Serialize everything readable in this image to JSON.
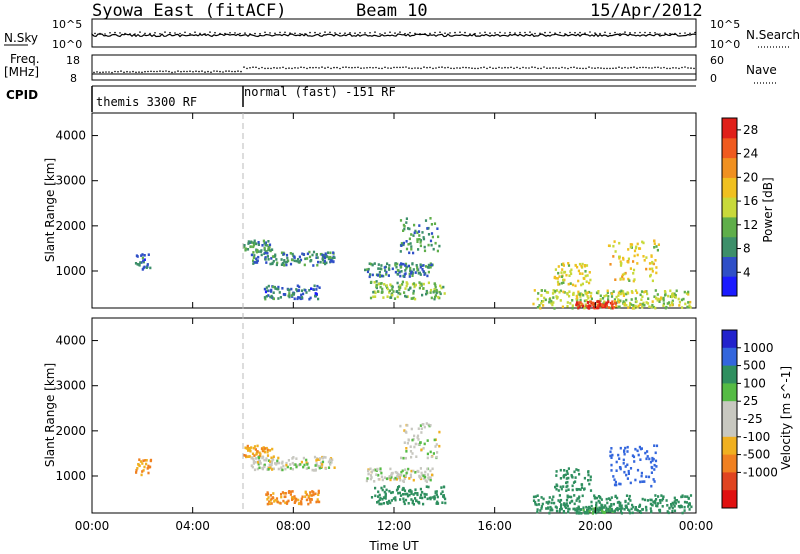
{
  "header": {
    "station": "Syowa East (fitACF)",
    "beam": "Beam 10",
    "date": "15/Apr/2012"
  },
  "top_panels": {
    "nsky_label": "N.Sky",
    "nsky_top": "10^5",
    "nsky_bottom": "10^0",
    "nsearch_label": "N.Search",
    "nsearch_top": "10^5",
    "nsearch_bottom": "10^0",
    "freq_label": "Freq.",
    "freq_unit": "[MHz]",
    "freq_top": "18",
    "freq_bottom": "8",
    "nave_label": "Nave",
    "nave_top": "60",
    "nave_bottom": "0",
    "cpid_label": "CPID",
    "cpid_segments": [
      {
        "label": "themis 3300 RF",
        "start_hour": 0
      },
      {
        "label": "normal (fast) -151 RF",
        "start_hour": 6
      }
    ]
  },
  "colors": {
    "power_scale": [
      "#1b1bff",
      "#2f4fc7",
      "#3d8f6a",
      "#5fae4a",
      "#c8d93a",
      "#f0c020",
      "#f09020",
      "#ef5a1f",
      "#e0201a"
    ],
    "velocity_scale": [
      "#2222cc",
      "#3366dd",
      "#2f8f5f",
      "#55bb44",
      "#c8c8c0",
      "#c8c8c0",
      "#f0b020",
      "#f08020",
      "#e04420",
      "#e01010"
    ]
  },
  "chart_data": [
    {
      "type": "heatmap",
      "name": "power-panel",
      "ylabel": "Slant Range [km]",
      "xlabel": "",
      "xlim": [
        0,
        24
      ],
      "ylim": [
        180,
        4500
      ],
      "y_ticks": [
        1000,
        2000,
        3000,
        4000
      ],
      "x_ticks": [
        0,
        4,
        8,
        12,
        16,
        20,
        24
      ],
      "colorbar_label": "Power [dB]",
      "colorbar_ticks": [
        "4",
        "8",
        "12",
        "16",
        "20",
        "24",
        "28"
      ],
      "colorbar_range": [
        0,
        30
      ],
      "patches": [
        {
          "t0": 1.7,
          "t1": 2.3,
          "r0": 1050,
          "r1": 1400,
          "v": 7
        },
        {
          "t0": 6.0,
          "t1": 7.2,
          "r0": 1450,
          "r1": 1700,
          "v": 9
        },
        {
          "t0": 6.3,
          "t1": 9.6,
          "r0": 1150,
          "r1": 1450,
          "v": 8
        },
        {
          "t0": 6.8,
          "t1": 9.0,
          "r0": 400,
          "r1": 700,
          "v": 7
        },
        {
          "t0": 10.8,
          "t1": 13.5,
          "r0": 900,
          "r1": 1200,
          "v": 8
        },
        {
          "t0": 12.2,
          "t1": 13.8,
          "r0": 1400,
          "r1": 2200,
          "v": 9
        },
        {
          "t0": 11.0,
          "t1": 14.0,
          "r0": 400,
          "r1": 800,
          "v": 12
        },
        {
          "t0": 17.5,
          "t1": 23.8,
          "r0": 200,
          "r1": 600,
          "v": 14
        },
        {
          "t0": 18.3,
          "t1": 19.8,
          "r0": 700,
          "r1": 1200,
          "v": 16
        },
        {
          "t0": 20.5,
          "t1": 22.5,
          "r0": 800,
          "r1": 1700,
          "v": 17
        },
        {
          "t0": 19.2,
          "t1": 20.8,
          "r0": 200,
          "r1": 350,
          "v": 27
        }
      ]
    },
    {
      "type": "heatmap",
      "name": "velocity-panel",
      "ylabel": "Slant Range [km]",
      "xlabel": "Time UT",
      "xlim": [
        0,
        24
      ],
      "ylim": [
        180,
        4500
      ],
      "y_ticks": [
        1000,
        2000,
        3000,
        4000
      ],
      "x_ticks": [
        0,
        4,
        8,
        12,
        16,
        20,
        24
      ],
      "x_tick_labels": [
        "00:00",
        "04:00",
        "08:00",
        "12:00",
        "16:00",
        "20:00",
        "00:00"
      ],
      "colorbar_label": "Velocity [m s^-1]",
      "colorbar_ticks": [
        "1000",
        "500",
        "100",
        "25",
        "-25",
        "-100",
        "-500",
        "-1000"
      ],
      "patches": [
        {
          "t0": 1.7,
          "t1": 2.3,
          "r0": 1050,
          "r1": 1400,
          "v": -100
        },
        {
          "t0": 6.0,
          "t1": 7.2,
          "r0": 1450,
          "r1": 1700,
          "v": -80
        },
        {
          "t0": 6.3,
          "t1": 9.6,
          "r0": 1150,
          "r1": 1450,
          "v": 0
        },
        {
          "t0": 6.8,
          "t1": 9.0,
          "r0": 400,
          "r1": 700,
          "v": -120
        },
        {
          "t0": 10.8,
          "t1": 13.5,
          "r0": 900,
          "r1": 1200,
          "v": 0
        },
        {
          "t0": 12.2,
          "t1": 13.8,
          "r0": 1400,
          "r1": 2200,
          "v": 5
        },
        {
          "t0": 11.0,
          "t1": 14.0,
          "r0": 400,
          "r1": 800,
          "v": 200
        },
        {
          "t0": 17.5,
          "t1": 23.8,
          "r0": 200,
          "r1": 600,
          "v": 150
        },
        {
          "t0": 18.3,
          "t1": 19.8,
          "r0": 700,
          "r1": 1200,
          "v": 400
        },
        {
          "t0": 20.5,
          "t1": 22.5,
          "r0": 800,
          "r1": 1700,
          "v": 600
        },
        {
          "t0": 19.2,
          "t1": 20.8,
          "r0": 200,
          "r1": 350,
          "v": 120
        }
      ]
    }
  ]
}
